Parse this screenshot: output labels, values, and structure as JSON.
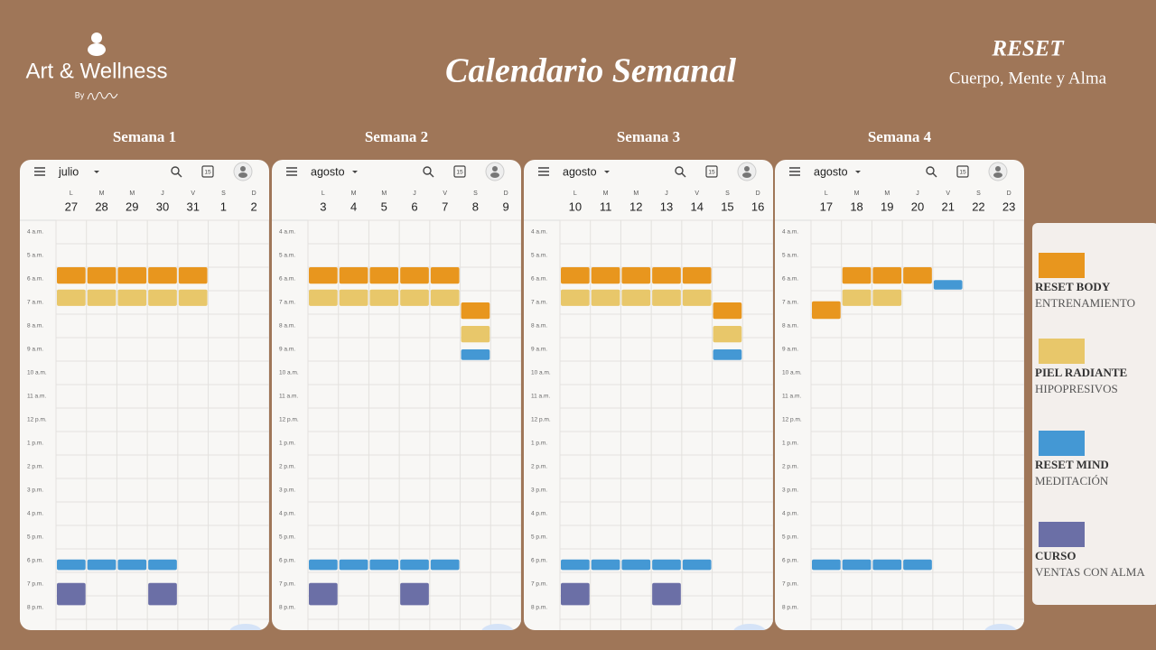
{
  "header": {
    "logo": "Art & Wellness",
    "logo_by": "By",
    "title": "Calendario Semanal",
    "brand": "RESET",
    "tagline": "Cuerpo, Mente y Alma"
  },
  "calendar_icon": "15",
  "weekdays": [
    "L",
    "M",
    "M",
    "J",
    "V",
    "S",
    "D"
  ],
  "hours": [
    "4 a.m.",
    "5 a.m.",
    "6 a.m.",
    "7 a.m.",
    "8 a.m.",
    "9 a.m.",
    "10 a.m.",
    "11 a.m.",
    "12 p.m.",
    "1 p.m.",
    "2 p.m.",
    "3 p.m.",
    "4 p.m.",
    "5 p.m.",
    "6 p.m.",
    "7 p.m.",
    "8 p.m."
  ],
  "weeks": [
    {
      "label": "Semana 1",
      "month": "julio",
      "dates": [
        27,
        28,
        29,
        30,
        31,
        1,
        2
      ]
    },
    {
      "label": "Semana 2",
      "month": "agosto",
      "dates": [
        3,
        4,
        5,
        6,
        7,
        8,
        9
      ]
    },
    {
      "label": "Semana 3",
      "month": "agosto",
      "dates": [
        10,
        11,
        12,
        13,
        14,
        15,
        16
      ]
    },
    {
      "label": "Semana 4",
      "month": "agosto",
      "dates": [
        17,
        18,
        19,
        20,
        21,
        22,
        23
      ]
    }
  ],
  "legend": [
    {
      "title": "RESET BODY",
      "subtitle": "ENTRENAMIENTO",
      "color": "#e8961e"
    },
    {
      "title": "PIEL RADIANTE",
      "subtitle": "HIPOPRESIVOS",
      "color": "#e8c76a"
    },
    {
      "title": "RESET MIND",
      "subtitle": "MEDITACIÓN",
      "color": "#4498d4"
    },
    {
      "title": "CURSO",
      "subtitle": "VENTAS CON ALMA",
      "color": "#6b6fa6"
    }
  ]
}
